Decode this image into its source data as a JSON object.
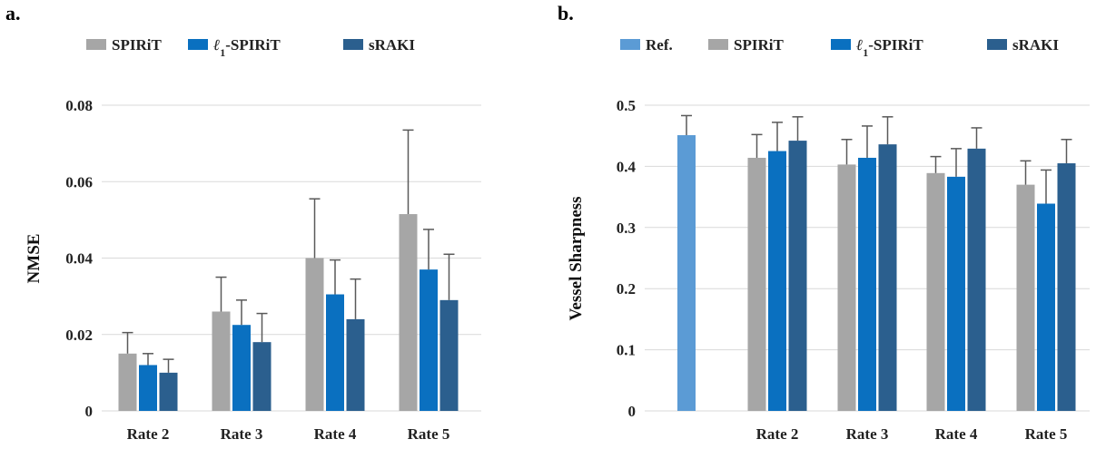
{
  "panels": [
    {
      "letter": "a.",
      "chart_data": {
        "type": "bar",
        "categories": [
          "Rate 2",
          "Rate 3",
          "Rate 4",
          "Rate 5"
        ],
        "series": [
          {
            "name": "SPIRiT",
            "color": "#a6a6a6",
            "values": [
              0.015,
              0.026,
              0.04,
              0.0515
            ],
            "errors": [
              0.0055,
              0.009,
              0.0155,
              0.022
            ]
          },
          {
            "name": "ℓ1-SPIRiT",
            "color": "#0a70c0",
            "values": [
              0.012,
              0.0225,
              0.0305,
              0.037
            ],
            "errors": [
              0.003,
              0.0065,
              0.009,
              0.0105
            ]
          },
          {
            "name": "sRAKI",
            "color": "#2b5f8e",
            "values": [
              0.01,
              0.018,
              0.024,
              0.029
            ],
            "errors": [
              0.0035,
              0.0075,
              0.0105,
              0.012
            ]
          }
        ],
        "ylabel": "NMSE",
        "ylim": [
          0,
          0.08
        ],
        "yticks": [
          "0",
          "0.02",
          "0.04",
          "0.06",
          "0.08"
        ],
        "ytick_values": [
          0,
          0.02,
          0.04,
          0.06,
          0.08
        ],
        "grid": true,
        "legend": "top"
      }
    },
    {
      "letter": "b.",
      "chart_data": {
        "type": "bar",
        "categories": [
          "",
          "Rate 2",
          "Rate 3",
          "Rate 4",
          "Rate 5"
        ],
        "series": [
          {
            "name": "Ref.",
            "color": "#5b9bd5",
            "values": [
              0.451,
              null,
              null,
              null,
              null
            ],
            "errors": [
              0.032,
              null,
              null,
              null,
              null
            ]
          },
          {
            "name": "SPIRiT",
            "color": "#a6a6a6",
            "values": [
              null,
              0.414,
              0.403,
              0.389,
              0.37
            ],
            "errors": [
              null,
              0.038,
              0.041,
              0.027,
              0.039
            ]
          },
          {
            "name": "ℓ1-SPIRiT",
            "color": "#0a70c0",
            "values": [
              null,
              0.425,
              0.414,
              0.383,
              0.339
            ],
            "errors": [
              null,
              0.047,
              0.052,
              0.046,
              0.055
            ]
          },
          {
            "name": "sRAKI",
            "color": "#2b5f8e",
            "values": [
              null,
              0.442,
              0.436,
              0.429,
              0.405
            ],
            "errors": [
              null,
              0.039,
              0.045,
              0.034,
              0.039
            ]
          }
        ],
        "ylabel": "Vessel Sharpness",
        "ylim": [
          0,
          0.5
        ],
        "yticks": [
          "0",
          "0.1",
          "0.2",
          "0.3",
          "0.4",
          "0.5"
        ],
        "ytick_values": [
          0,
          0.1,
          0.2,
          0.3,
          0.4,
          0.5
        ],
        "grid": true,
        "legend": "top"
      }
    }
  ]
}
